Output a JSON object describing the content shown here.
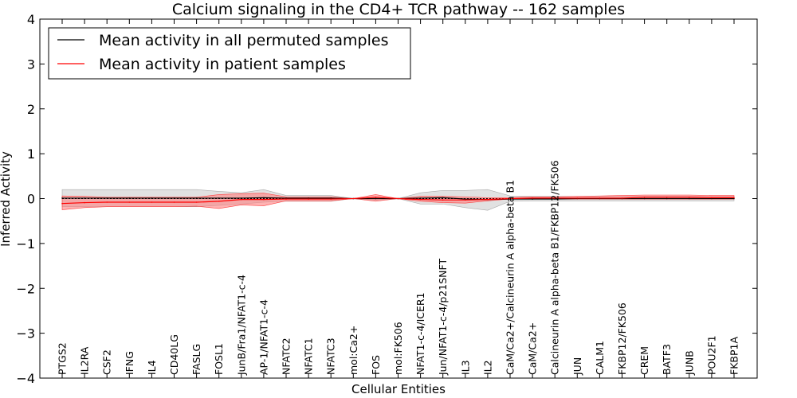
{
  "chart_data": {
    "type": "line",
    "title": "Calcium signaling in the CD4+ TCR pathway -- 162 samples",
    "xlabel": "Cellular Entities",
    "ylabel": "Inferred Activity",
    "ylim": [
      -4,
      4
    ],
    "yticks": [
      -4,
      -3,
      -2,
      -1,
      0,
      1,
      2,
      3,
      4
    ],
    "ytick_labels": [
      "−4",
      "−3",
      "−2",
      "−1",
      "0",
      "1",
      "2",
      "3",
      "4"
    ],
    "legend_position": "top-left",
    "categories": [
      "PTGS2",
      "IL2RA",
      "CSF2",
      "IFNG",
      "IL4",
      "CD40LG",
      "FASLG",
      "FOSL1",
      "JunB/Fra1/NFAT1-c-4",
      "AP-1/NFAT1-c-4",
      "NFATC2",
      "NFATC1",
      "NFATC3",
      "mol:Ca2+",
      "FOS",
      "mol:FK506",
      "NFAT1-c-4/ICER1",
      "Jun/NFAT1-c-4/p21SNFT",
      "IL3",
      "IL2",
      "CaM/Ca2+/Calcineurin A alpha-beta B1",
      "CaM/Ca2+",
      "Calcineurin A alpha-beta B1/FKBP12/FK506",
      "JUN",
      "CALM1",
      "FKBP12/FK506",
      "CREM",
      "BATF3",
      "JUNB",
      "POU2F1",
      "FKBP1A"
    ],
    "series": [
      {
        "name": "Mean activity in all permuted samples",
        "color": "#000000",
        "band_color": "#c8c8c8",
        "values": [
          0.01,
          0.01,
          0.01,
          0.01,
          0.01,
          0.01,
          0.01,
          0.01,
          0.01,
          0.02,
          0.01,
          0.01,
          0.01,
          0.0,
          0.0,
          0.0,
          0.01,
          0.02,
          -0.01,
          -0.02,
          -0.01,
          -0.01,
          -0.01,
          0.0,
          0.0,
          0.0,
          0.0,
          0.0,
          0.0,
          0.0,
          0.0
        ],
        "lower": [
          -0.18,
          -0.18,
          -0.18,
          -0.18,
          -0.18,
          -0.18,
          -0.18,
          -0.15,
          -0.12,
          -0.08,
          -0.06,
          -0.06,
          -0.06,
          0.0,
          -0.04,
          0.0,
          -0.12,
          -0.12,
          -0.2,
          -0.26,
          -0.06,
          -0.05,
          -0.05,
          -0.05,
          -0.05,
          -0.05,
          -0.05,
          -0.05,
          -0.05,
          -0.05,
          -0.05
        ],
        "upper": [
          0.2,
          0.2,
          0.2,
          0.2,
          0.2,
          0.2,
          0.2,
          0.16,
          0.13,
          0.2,
          0.07,
          0.07,
          0.07,
          0.0,
          0.04,
          0.0,
          0.13,
          0.18,
          0.18,
          0.2,
          0.06,
          0.05,
          0.05,
          0.05,
          0.05,
          0.05,
          0.05,
          0.05,
          0.05,
          0.05,
          0.05
        ]
      },
      {
        "name": "Mean activity in patient samples",
        "color": "#ff0000",
        "band_color": "#ff8080",
        "values": [
          -0.11,
          -0.09,
          -0.08,
          -0.08,
          -0.08,
          -0.08,
          -0.08,
          -0.06,
          -0.02,
          -0.02,
          -0.01,
          -0.01,
          -0.01,
          0.0,
          0.03,
          0.0,
          -0.02,
          -0.03,
          -0.03,
          -0.02,
          0.0,
          0.01,
          0.01,
          0.01,
          0.01,
          0.01,
          0.03,
          0.03,
          0.03,
          0.02,
          0.02
        ],
        "lower": [
          -0.25,
          -0.2,
          -0.18,
          -0.18,
          -0.18,
          -0.18,
          -0.17,
          -0.22,
          -0.14,
          -0.16,
          -0.05,
          -0.05,
          -0.05,
          0.0,
          -0.06,
          0.0,
          -0.06,
          -0.09,
          -0.1,
          -0.05,
          -0.01,
          -0.01,
          -0.01,
          -0.01,
          -0.01,
          -0.01,
          -0.01,
          -0.01,
          -0.01,
          -0.01,
          -0.01
        ],
        "upper": [
          0.06,
          0.05,
          0.03,
          0.03,
          0.03,
          0.03,
          0.03,
          0.09,
          0.11,
          0.12,
          0.04,
          0.04,
          0.04,
          0.0,
          0.09,
          0.0,
          0.05,
          0.05,
          0.04,
          0.02,
          0.02,
          0.04,
          0.04,
          0.05,
          0.06,
          0.07,
          0.08,
          0.08,
          0.08,
          0.07,
          0.07
        ]
      }
    ]
  }
}
